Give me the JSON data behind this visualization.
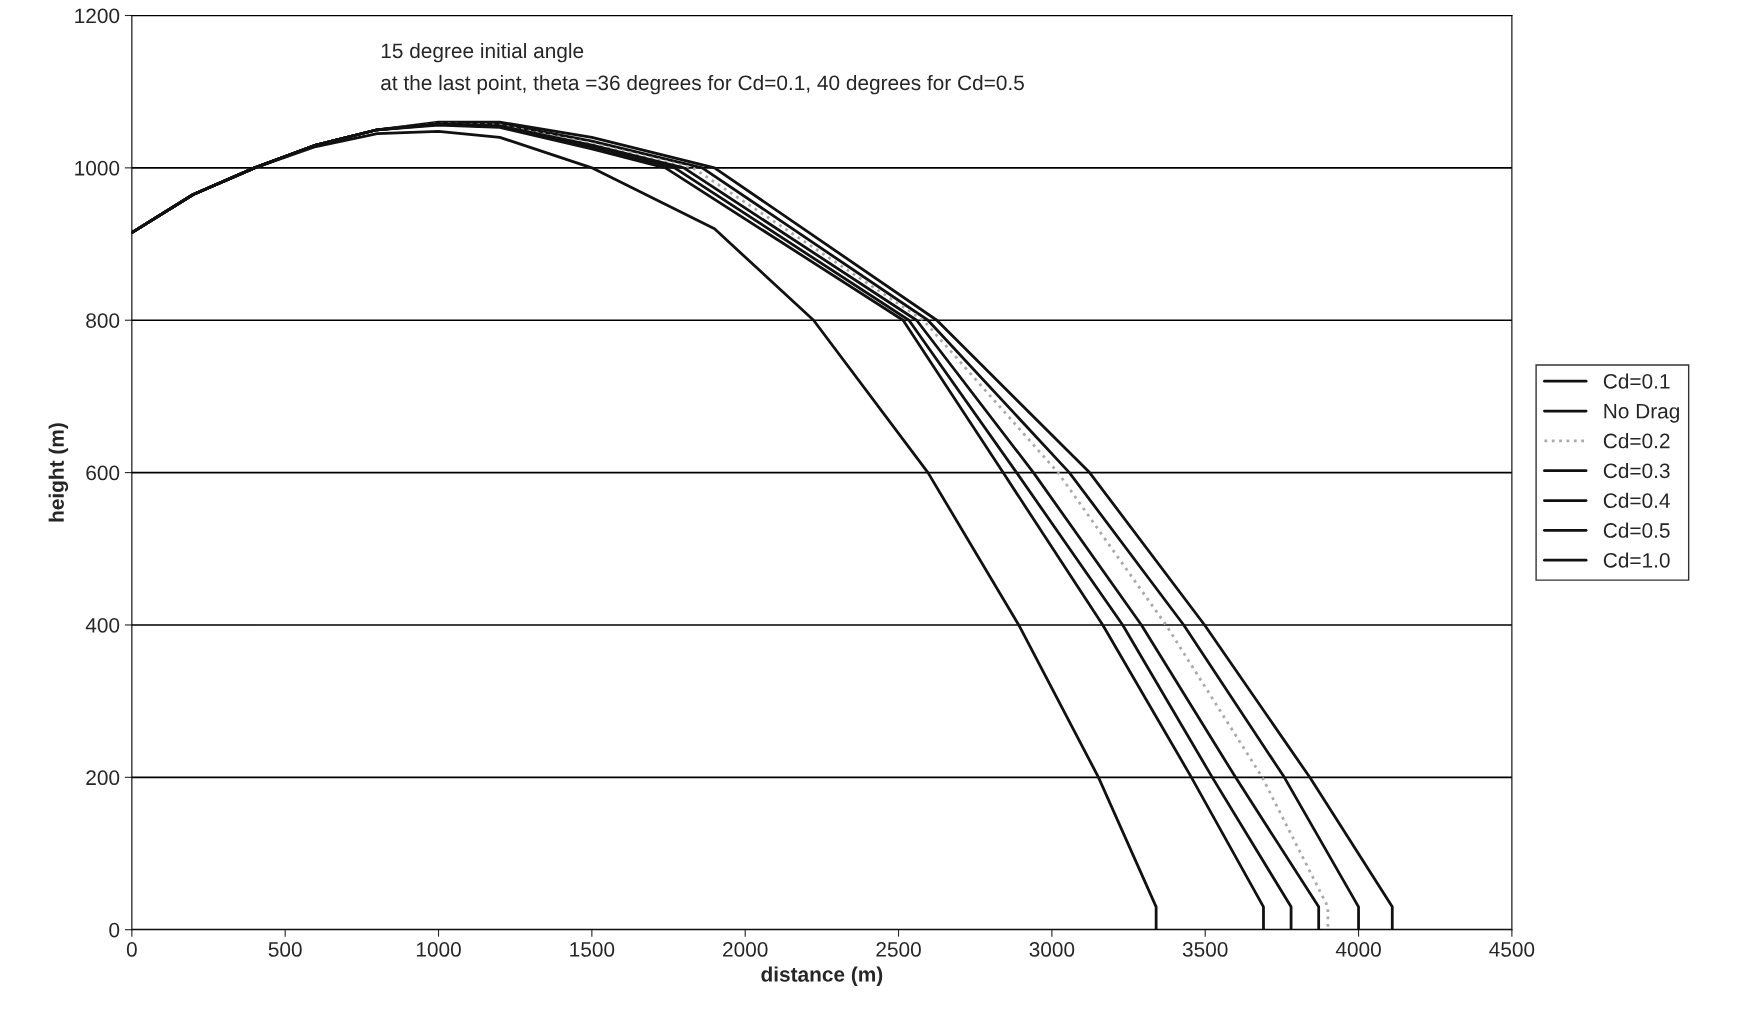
{
  "chart_data": {
    "type": "line",
    "xlabel": "distance (m)",
    "ylabel": "height (m)",
    "annotations": [
      "15 degree initial angle",
      "at the last point, theta =36 degrees for Cd=0.1, 40 degrees for Cd=0.5"
    ],
    "xlim": [
      0,
      4500
    ],
    "xticks": [
      0,
      500,
      1000,
      1500,
      2000,
      2500,
      3000,
      3500,
      4000,
      4500
    ],
    "ylim": [
      0,
      1200
    ],
    "yticks": [
      0,
      200,
      400,
      600,
      800,
      1000,
      1200
    ],
    "grid": "y",
    "legend": "right",
    "marker": "none",
    "series": [
      {
        "name": "Cd=0.1",
        "color": "#111111",
        "line_style": "solid",
        "x": [
          0,
          200,
          400,
          600,
          800,
          1000,
          1200,
          1500,
          1860,
          2596,
          3057,
          3430,
          3758,
          4000,
          4000
        ],
        "values": [
          915,
          965,
          1000,
          1030,
          1050,
          1058,
          1058,
          1035,
          1000,
          800,
          600,
          400,
          200,
          30,
          0
        ]
      },
      {
        "name": "No Drag",
        "color": "#111111",
        "line_style": "solid",
        "x": [
          0,
          200,
          400,
          600,
          800,
          1000,
          1200,
          1500,
          1900,
          2625,
          3123,
          3498,
          3841,
          4110,
          4110
        ],
        "values": [
          915,
          965,
          1000,
          1030,
          1050,
          1060,
          1060,
          1040,
          1000,
          800,
          600,
          400,
          200,
          30,
          0
        ]
      },
      {
        "name": "Cd=0.2",
        "color": "#aaaaaa",
        "line_style": "dotted",
        "x": [
          0,
          200,
          400,
          600,
          800,
          1000,
          1200,
          1500,
          1830,
          2581,
          3020,
          3372,
          3686,
          3900,
          3900
        ],
        "values": [
          915,
          965,
          1000,
          1030,
          1050,
          1058,
          1056,
          1032,
          1000,
          800,
          600,
          400,
          200,
          30,
          0
        ]
      },
      {
        "name": "Cd=0.3",
        "color": "#111111",
        "line_style": "solid",
        "x": [
          0,
          200,
          400,
          600,
          800,
          1000,
          1200,
          1500,
          1800,
          2559,
          2940,
          3292,
          3599,
          3870,
          3870
        ],
        "values": [
          915,
          965,
          1000,
          1030,
          1050,
          1058,
          1055,
          1030,
          1000,
          800,
          600,
          400,
          200,
          30,
          0
        ]
      },
      {
        "name": "Cd=0.4",
        "color": "#111111",
        "line_style": "solid",
        "x": [
          0,
          200,
          400,
          600,
          800,
          1000,
          1200,
          1500,
          1770,
          2534,
          2885,
          3231,
          3523,
          3780,
          3780
        ],
        "values": [
          915,
          965,
          1000,
          1030,
          1050,
          1057,
          1054,
          1028,
          1000,
          800,
          600,
          400,
          200,
          30,
          0
        ]
      },
      {
        "name": "Cd=0.5",
        "color": "#111111",
        "line_style": "solid",
        "x": [
          0,
          200,
          400,
          600,
          800,
          1000,
          1200,
          1500,
          1740,
          2515,
          2841,
          3166,
          3455,
          3690,
          3690
        ],
        "values": [
          915,
          965,
          1000,
          1030,
          1050,
          1056,
          1053,
          1025,
          1000,
          800,
          600,
          400,
          200,
          30,
          0
        ]
      },
      {
        "name": "Cd=1.0",
        "color": "#111111",
        "line_style": "solid",
        "x": [
          0,
          200,
          400,
          600,
          800,
          1000,
          1200,
          1500,
          1900,
          2223,
          2596,
          2892,
          3152,
          3340,
          3340
        ],
        "values": [
          915,
          965,
          1000,
          1028,
          1045,
          1048,
          1040,
          1000,
          920,
          800,
          600,
          400,
          200,
          30,
          0
        ]
      }
    ]
  }
}
